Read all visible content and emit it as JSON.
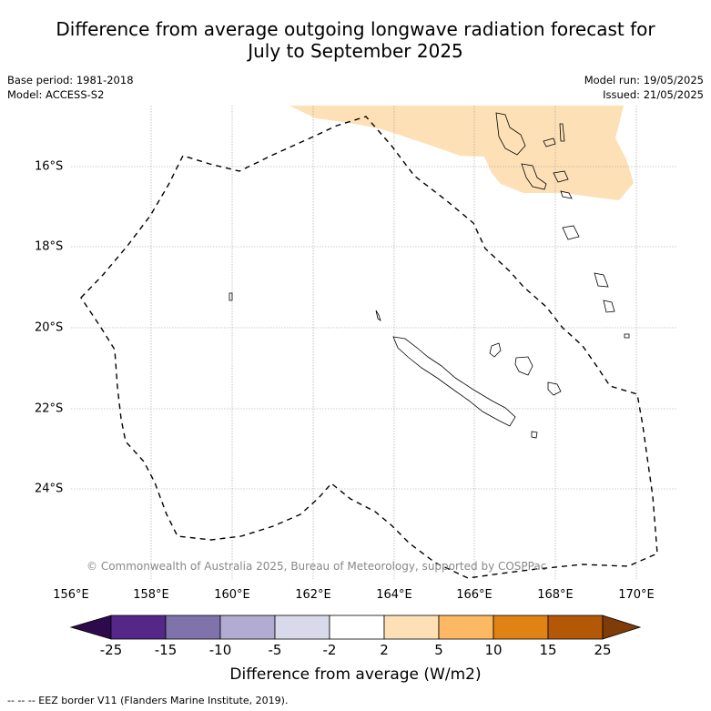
{
  "title_line1": "Difference from average outgoing longwave radiation forecast for",
  "title_line2": "July to September 2025",
  "meta_left": [
    "Base period: 1981-2018",
    "Model: ACCESS-S2"
  ],
  "meta_right": [
    "Model run: 19/05/2025",
    "Issued: 21/05/2025"
  ],
  "map": {
    "lon_labels": [
      "156°E",
      "158°E",
      "160°E",
      "162°E",
      "164°E",
      "166°E",
      "168°E",
      "170°E"
    ],
    "lat_labels": [
      "16°S",
      "18°S",
      "20°S",
      "22°S",
      "24°S"
    ],
    "copyright": "© Commonwealth of Australia 2025, Bureau of Meteorology, supported by COSPPac",
    "anomaly_fill_color": "#fde0b6"
  },
  "colorbar": {
    "ticks": [
      "-25",
      "-15",
      "-10",
      "-5",
      "-2",
      "2",
      "5",
      "10",
      "15",
      "25"
    ],
    "colors": [
      "#2d0a4b",
      "#542788",
      "#8073ac",
      "#b2abd2",
      "#d8daeb",
      "#ffffff",
      "#fee0b6",
      "#fdb863",
      "#e08214",
      "#b35806",
      "#7f3b08"
    ],
    "label": "Difference from average (W/m2)"
  },
  "footnote": "-- -- -- EEZ border V11 (Flanders Marine Institute, 2019)."
}
